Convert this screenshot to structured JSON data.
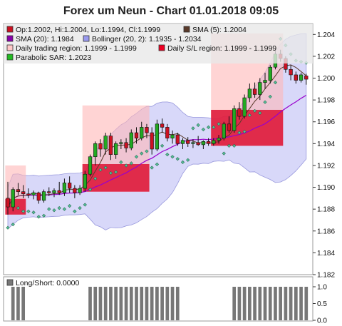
{
  "chart_data": {
    "type": "candlestick",
    "title": "Forex um Neun - Chart 01.01.2018 09:05",
    "legend": [
      {
        "label": "Op:1.2002, Hi:1.2004, Lo:1.1994, Cl:1.1999",
        "color": "#cc1122"
      },
      {
        "label": "SMA (5): 1.2004",
        "color": "#5a3a2a"
      },
      {
        "label": "SMA (20): 1.1984",
        "color": "#8800aa"
      },
      {
        "label": "Bollinger (20, 2): 1.1935 - 1.2034",
        "color": "#9999ee"
      },
      {
        "label": "Daily trading region: 1.1999 - 1.1999",
        "color": "#ffc8c8"
      },
      {
        "label": "Daily S/L region: 1.1999 - 1.1999",
        "color": "#ee0022"
      },
      {
        "label": "Parabolic SAR: 1.2023",
        "color": "#22bb22"
      }
    ],
    "y_axis": {
      "min": 1.182,
      "max": 1.205,
      "ticks": [
        "1.204",
        "1.202",
        "1.200",
        "1.198",
        "1.196",
        "1.194",
        "1.192",
        "1.190",
        "1.188",
        "1.186",
        "1.184",
        "1.182"
      ]
    },
    "candles": [
      {
        "o": 1.189,
        "h": 1.1905,
        "l": 1.1875,
        "c": 1.1882
      },
      {
        "o": 1.1882,
        "h": 1.19,
        "l": 1.1878,
        "c": 1.1898
      },
      {
        "o": 1.1898,
        "h": 1.1904,
        "l": 1.1893,
        "c": 1.1896
      },
      {
        "o": 1.1896,
        "h": 1.1902,
        "l": 1.189,
        "c": 1.1894
      },
      {
        "o": 1.1894,
        "h": 1.1899,
        "l": 1.189,
        "c": 1.1893
      },
      {
        "o": 1.1893,
        "h": 1.1897,
        "l": 1.1889,
        "c": 1.1895
      },
      {
        "o": 1.1895,
        "h": 1.1896,
        "l": 1.1885,
        "c": 1.1888
      },
      {
        "o": 1.1888,
        "h": 1.1898,
        "l": 1.1886,
        "c": 1.1896
      },
      {
        "o": 1.1896,
        "h": 1.19,
        "l": 1.1892,
        "c": 1.1895
      },
      {
        "o": 1.1895,
        "h": 1.1899,
        "l": 1.1891,
        "c": 1.1897
      },
      {
        "o": 1.1897,
        "h": 1.1905,
        "l": 1.1893,
        "c": 1.1895
      },
      {
        "o": 1.1895,
        "h": 1.1908,
        "l": 1.1892,
        "c": 1.1904
      },
      {
        "o": 1.1904,
        "h": 1.191,
        "l": 1.1895,
        "c": 1.1899
      },
      {
        "o": 1.1899,
        "h": 1.1902,
        "l": 1.189,
        "c": 1.1895
      },
      {
        "o": 1.1895,
        "h": 1.1902,
        "l": 1.1893,
        "c": 1.1899
      },
      {
        "o": 1.1899,
        "h": 1.1915,
        "l": 1.1896,
        "c": 1.1912
      },
      {
        "o": 1.1912,
        "h": 1.193,
        "l": 1.191,
        "c": 1.1928
      },
      {
        "o": 1.1928,
        "h": 1.1942,
        "l": 1.192,
        "c": 1.194
      },
      {
        "o": 1.194,
        "h": 1.1944,
        "l": 1.1928,
        "c": 1.1935
      },
      {
        "o": 1.1935,
        "h": 1.195,
        "l": 1.193,
        "c": 1.1947
      },
      {
        "o": 1.1947,
        "h": 1.195,
        "l": 1.1925,
        "c": 1.193
      },
      {
        "o": 1.193,
        "h": 1.1942,
        "l": 1.1926,
        "c": 1.194
      },
      {
        "o": 1.194,
        "h": 1.1944,
        "l": 1.1935,
        "c": 1.1941
      },
      {
        "o": 1.1941,
        "h": 1.1945,
        "l": 1.1932,
        "c": 1.1936
      },
      {
        "o": 1.1936,
        "h": 1.1953,
        "l": 1.1934,
        "c": 1.195
      },
      {
        "o": 1.195,
        "h": 1.1955,
        "l": 1.194,
        "c": 1.1945
      },
      {
        "o": 1.1945,
        "h": 1.196,
        "l": 1.1943,
        "c": 1.1955
      },
      {
        "o": 1.1955,
        "h": 1.1958,
        "l": 1.1945,
        "c": 1.195
      },
      {
        "o": 1.195,
        "h": 1.1955,
        "l": 1.193,
        "c": 1.1935
      },
      {
        "o": 1.1935,
        "h": 1.1962,
        "l": 1.1933,
        "c": 1.1958
      },
      {
        "o": 1.1958,
        "h": 1.1963,
        "l": 1.195,
        "c": 1.1955
      },
      {
        "o": 1.1955,
        "h": 1.1958,
        "l": 1.1942,
        "c": 1.1945
      },
      {
        "o": 1.1945,
        "h": 1.1952,
        "l": 1.194,
        "c": 1.1948
      },
      {
        "o": 1.1948,
        "h": 1.195,
        "l": 1.1938,
        "c": 1.194
      },
      {
        "o": 1.194,
        "h": 1.1945,
        "l": 1.1935,
        "c": 1.1943
      },
      {
        "o": 1.1943,
        "h": 1.1946,
        "l": 1.1937,
        "c": 1.194
      },
      {
        "o": 1.194,
        "h": 1.1944,
        "l": 1.1936,
        "c": 1.1941
      },
      {
        "o": 1.1941,
        "h": 1.1947,
        "l": 1.1938,
        "c": 1.1939
      },
      {
        "o": 1.1939,
        "h": 1.1943,
        "l": 1.1935,
        "c": 1.1942
      },
      {
        "o": 1.1942,
        "h": 1.1945,
        "l": 1.1938,
        "c": 1.194
      },
      {
        "o": 1.194,
        "h": 1.1945,
        "l": 1.1938,
        "c": 1.1943
      },
      {
        "o": 1.1943,
        "h": 1.1948,
        "l": 1.194,
        "c": 1.1945
      },
      {
        "o": 1.1945,
        "h": 1.196,
        "l": 1.1943,
        "c": 1.1958
      },
      {
        "o": 1.1958,
        "h": 1.1965,
        "l": 1.195,
        "c": 1.1952
      },
      {
        "o": 1.1952,
        "h": 1.1975,
        "l": 1.195,
        "c": 1.1972
      },
      {
        "o": 1.1972,
        "h": 1.1978,
        "l": 1.1962,
        "c": 1.1965
      },
      {
        "o": 1.1965,
        "h": 1.1985,
        "l": 1.1963,
        "c": 1.1982
      },
      {
        "o": 1.1982,
        "h": 1.1995,
        "l": 1.1978,
        "c": 1.199
      },
      {
        "o": 1.199,
        "h": 1.1996,
        "l": 1.1982,
        "c": 1.1985
      },
      {
        "o": 1.1985,
        "h": 1.2,
        "l": 1.198,
        "c": 1.1996
      },
      {
        "o": 1.1996,
        "h": 1.2005,
        "l": 1.199,
        "c": 1.1998
      },
      {
        "o": 1.1998,
        "h": 1.2012,
        "l": 1.1995,
        "c": 1.201
      },
      {
        "o": 1.201,
        "h": 1.2025,
        "l": 1.2008,
        "c": 1.2022
      },
      {
        "o": 1.2022,
        "h": 1.2026,
        "l": 1.2015,
        "c": 1.2018
      },
      {
        "o": 1.2018,
        "h": 1.202,
        "l": 1.2005,
        "c": 1.2008
      },
      {
        "o": 1.2008,
        "h": 1.2012,
        "l": 1.1998,
        "c": 1.2003
      },
      {
        "o": 1.2003,
        "h": 1.2006,
        "l": 1.1995,
        "c": 1.1998
      },
      {
        "o": 1.1998,
        "h": 1.2005,
        "l": 1.1996,
        "c": 1.2003
      },
      {
        "o": 1.2002,
        "h": 1.2004,
        "l": 1.1994,
        "c": 1.1999
      }
    ],
    "sub_chart": {
      "legend": {
        "label": "Long/Short: 0.0000",
        "color": "#777777"
      },
      "y_axis": {
        "min": 0,
        "max": 1,
        "ticks": [
          "1.0",
          "0.5",
          "0.0"
        ]
      }
    }
  }
}
